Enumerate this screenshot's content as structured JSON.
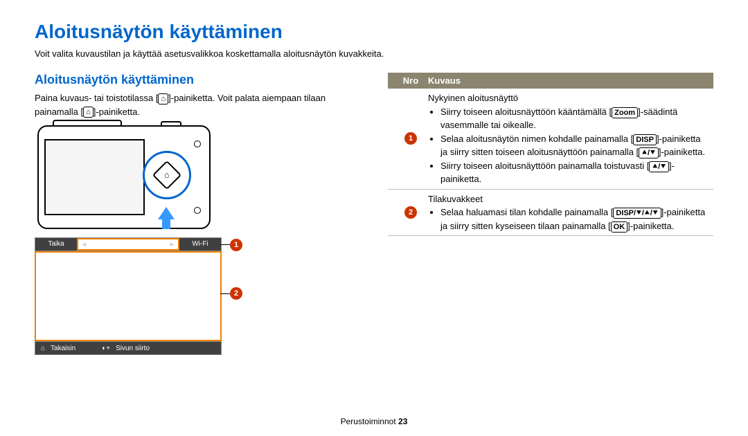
{
  "title": "Aloitusnäytön käyttäminen",
  "intro": "Voit valita kuvaustilan ja käyttää asetusvalikkoa koskettamalla aloitusnäytön kuvakkeita.",
  "subtitle": "Aloitusnäytön käyttäminen",
  "instruction_pre": "Paina kuvaus- tai toistotilassa [",
  "instruction_mid": "]-painiketta. Voit palata aiempaan tilaan painamalla [",
  "instruction_post": "]-painiketta.",
  "home_icon": "⌂",
  "ui": {
    "left": "Taika",
    "right": "Wi-Fi",
    "back_icon": "⌂",
    "back": "Takaisin",
    "scroll_icon": "◐+",
    "scroll": "Sivun siirto"
  },
  "callouts": {
    "one": "1",
    "two": "2"
  },
  "table": {
    "head_nro": "Nro",
    "head_desc": "Kuvaus",
    "row1": {
      "num": "1",
      "heading": "Nykyinen aloitusnäyttö",
      "b1_pre": "Siirry toiseen aloitusnäyttöön kääntämällä [",
      "b1_key": "Zoom",
      "b1_post": "]-säädintä vasemmalle tai oikealle.",
      "b2_pre": "Selaa aloitusnäytön nimen kohdalle painamalla [",
      "b2_key": "DISP",
      "b2_mid": "]-painiketta ja siirry sitten toiseen aloitusnäyttöön painamalla [",
      "b2_key2": "⯅/⯆",
      "b2_post": "]-painiketta.",
      "b3_pre": "Siirry toiseen aloitusnäyttöön painamalla toistuvasti [",
      "b3_key": "⯅/⯆",
      "b3_post": "]-painiketta."
    },
    "row2": {
      "num": "2",
      "heading": "Tilakuvakkeet",
      "b1_pre": "Selaa haluamasi tilan kohdalle painamalla [",
      "b1_key": "DISP/⯆/⯅/⯆",
      "b1_mid": "]-painiketta ja siirry sitten kyseiseen tilaan painamalla [",
      "b1_key2": "OK",
      "b1_post": "]-painiketta."
    }
  },
  "footer_label": "Perustoiminnot",
  "footer_page": "23",
  "colors": {
    "accent": "#0066cc",
    "callout": "#cc3300",
    "highlight": "#f08000",
    "table_head": "#8b8570"
  }
}
